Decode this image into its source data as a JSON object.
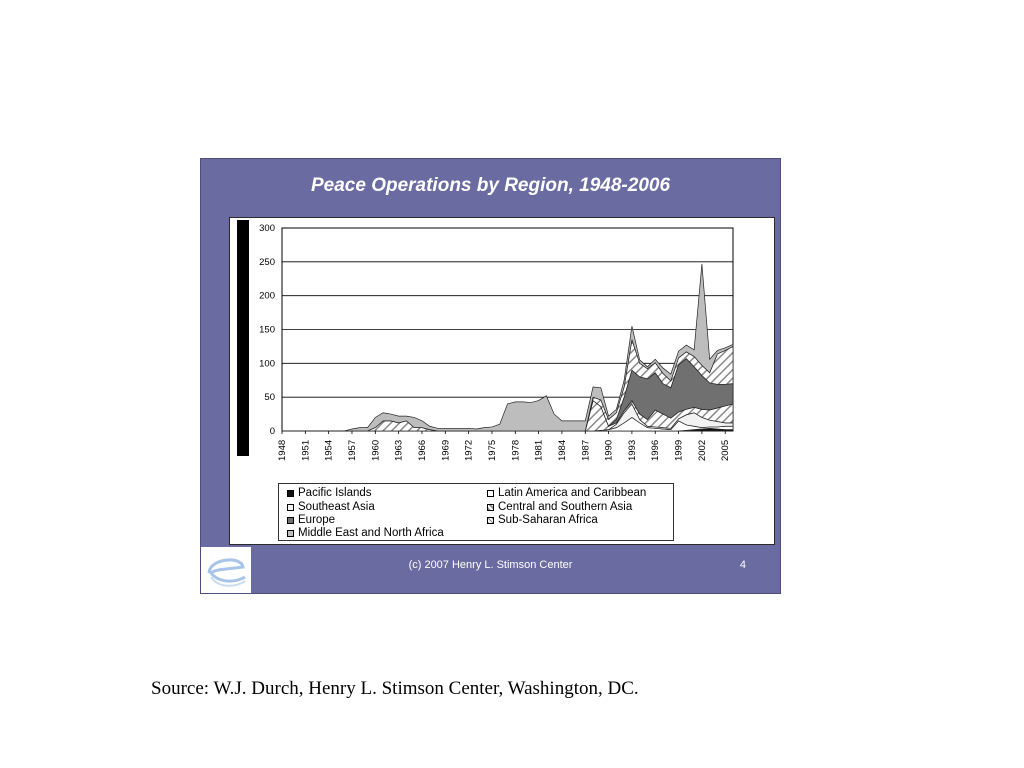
{
  "slide": {
    "title": "Peace Operations by Region, 1948-2006",
    "copyright": "(c) 2007 Henry L. Stimson Center",
    "page_number": "4",
    "source": "Source: W.J. Durch, Henry L. Stimson Center, Washington, DC."
  },
  "chart_data": {
    "type": "area",
    "title": "Peace Operations by Region, 1948-2006",
    "xlabel": "",
    "ylabel": "",
    "ylim": [
      0,
      300
    ],
    "yticks": [
      0,
      50,
      100,
      150,
      200,
      250,
      300
    ],
    "xticks": [
      1948,
      1951,
      1954,
      1957,
      1960,
      1963,
      1966,
      1969,
      1972,
      1975,
      1978,
      1981,
      1984,
      1987,
      1990,
      1993,
      1996,
      1999,
      2002,
      2005
    ],
    "xlim": [
      1948,
      2006
    ],
    "grid": "horizontal",
    "stacked": true,
    "legend_position": "bottom",
    "x": [
      1948,
      1949,
      1950,
      1951,
      1952,
      1953,
      1954,
      1955,
      1956,
      1957,
      1958,
      1959,
      1960,
      1961,
      1962,
      1963,
      1964,
      1965,
      1966,
      1967,
      1968,
      1969,
      1970,
      1971,
      1972,
      1973,
      1974,
      1975,
      1976,
      1977,
      1978,
      1979,
      1980,
      1981,
      1982,
      1983,
      1984,
      1985,
      1986,
      1987,
      1988,
      1989,
      1990,
      1991,
      1992,
      1993,
      1994,
      1995,
      1996,
      1997,
      1998,
      1999,
      2000,
      2001,
      2002,
      2003,
      2004,
      2005,
      2006
    ],
    "series": [
      {
        "name": "Pacific Islands",
        "color": "#111111",
        "values": [
          0,
          0,
          0,
          0,
          0,
          0,
          0,
          0,
          0,
          0,
          0,
          0,
          0,
          0,
          0,
          0,
          0,
          0,
          0,
          0,
          0,
          0,
          0,
          0,
          0,
          0,
          0,
          0,
          0,
          0,
          0,
          0,
          0,
          0,
          0,
          0,
          0,
          0,
          0,
          0,
          0,
          0,
          0,
          0,
          0,
          0,
          0,
          0,
          0,
          0,
          0,
          0,
          1,
          2,
          3,
          4,
          3,
          2,
          2
        ]
      },
      {
        "name": "Latin America and Caribbean",
        "color": "#ffffff",
        "values": [
          0,
          0,
          0,
          0,
          0,
          0,
          0,
          0,
          0,
          0,
          0,
          0,
          0,
          0,
          0,
          0,
          0,
          0,
          0,
          0,
          0,
          0,
          0,
          0,
          0,
          0,
          0,
          0,
          0,
          0,
          0,
          0,
          0,
          0,
          0,
          0,
          0,
          0,
          0,
          0,
          0,
          1,
          2,
          5,
          12,
          20,
          12,
          5,
          4,
          3,
          2,
          15,
          8,
          5,
          2,
          2,
          3,
          5,
          5
        ]
      },
      {
        "name": "Southeast Asia",
        "color": "#f2f2f2",
        "values": [
          0,
          0,
          0,
          0,
          0,
          0,
          0,
          0,
          0,
          0,
          0,
          0,
          0,
          0,
          0,
          0,
          0,
          0,
          0,
          0,
          0,
          0,
          0,
          0,
          0,
          0,
          0,
          0,
          0,
          0,
          0,
          0,
          0,
          0,
          0,
          0,
          0,
          0,
          0,
          0,
          0,
          0,
          0,
          5,
          15,
          20,
          5,
          2,
          2,
          2,
          2,
          3,
          15,
          20,
          15,
          10,
          8,
          5,
          5
        ]
      },
      {
        "name": "Central and Southern Asia",
        "color": "#dcdcdc",
        "pattern": "hatch",
        "values": [
          0,
          0,
          0,
          0,
          0,
          0,
          0,
          0,
          0,
          0,
          0,
          0,
          0,
          0,
          0,
          0,
          0,
          0,
          0,
          0,
          0,
          0,
          0,
          0,
          0,
          0,
          0,
          0,
          0,
          0,
          0,
          0,
          0,
          0,
          0,
          0,
          0,
          0,
          0,
          0,
          45,
          35,
          5,
          2,
          3,
          5,
          8,
          10,
          25,
          20,
          15,
          10,
          8,
          8,
          12,
          15,
          20,
          25,
          28
        ]
      },
      {
        "name": "Europe",
        "color": "#707070",
        "values": [
          0,
          0,
          0,
          0,
          0,
          0,
          0,
          0,
          0,
          0,
          0,
          0,
          0,
          0,
          0,
          0,
          0,
          0,
          0,
          0,
          0,
          0,
          0,
          0,
          0,
          0,
          0,
          0,
          0,
          0,
          0,
          0,
          0,
          0,
          0,
          0,
          0,
          0,
          0,
          0,
          0,
          0,
          0,
          5,
          20,
          45,
          55,
          60,
          55,
          45,
          45,
          70,
          75,
          60,
          50,
          40,
          35,
          32,
          30
        ]
      },
      {
        "name": "Sub-Saharan Africa",
        "color": "#eeeeee",
        "pattern": "hatch",
        "values": [
          0,
          0,
          0,
          0,
          0,
          0,
          0,
          0,
          0,
          0,
          0,
          0,
          5,
          15,
          15,
          12,
          15,
          5,
          5,
          2,
          0,
          0,
          0,
          0,
          0,
          0,
          0,
          0,
          0,
          0,
          0,
          0,
          0,
          0,
          0,
          0,
          0,
          0,
          0,
          0,
          5,
          10,
          10,
          10,
          15,
          45,
          20,
          15,
          15,
          15,
          10,
          10,
          10,
          15,
          15,
          15,
          45,
          50,
          55
        ]
      },
      {
        "name": "Middle East and North Africa",
        "color": "#bdbdbd",
        "values": [
          0,
          0,
          0,
          0,
          0,
          0,
          0,
          0,
          0,
          3,
          5,
          5,
          15,
          12,
          10,
          10,
          7,
          15,
          10,
          5,
          4,
          4,
          4,
          4,
          4,
          3,
          5,
          6,
          10,
          40,
          43,
          43,
          42,
          45,
          52,
          25,
          15,
          15,
          15,
          15,
          15,
          18,
          5,
          5,
          10,
          20,
          5,
          3,
          5,
          8,
          10,
          10,
          10,
          10,
          150,
          20,
          5,
          4,
          3
        ]
      }
    ]
  },
  "legend": {
    "items": [
      {
        "label": "Pacific Islands",
        "color": "#111111"
      },
      {
        "label": "Latin America and Caribbean",
        "color": "#ffffff"
      },
      {
        "label": "Southeast Asia",
        "color": "#f2f2f2"
      },
      {
        "label": "Central and Southern Asia",
        "color": "#dcdcdc"
      },
      {
        "label": "Europe",
        "color": "#707070"
      },
      {
        "label": "Sub-Saharan Africa",
        "color": "#eeeeee"
      },
      {
        "label": "Middle East and North Africa",
        "color": "#bdbdbd"
      }
    ]
  }
}
